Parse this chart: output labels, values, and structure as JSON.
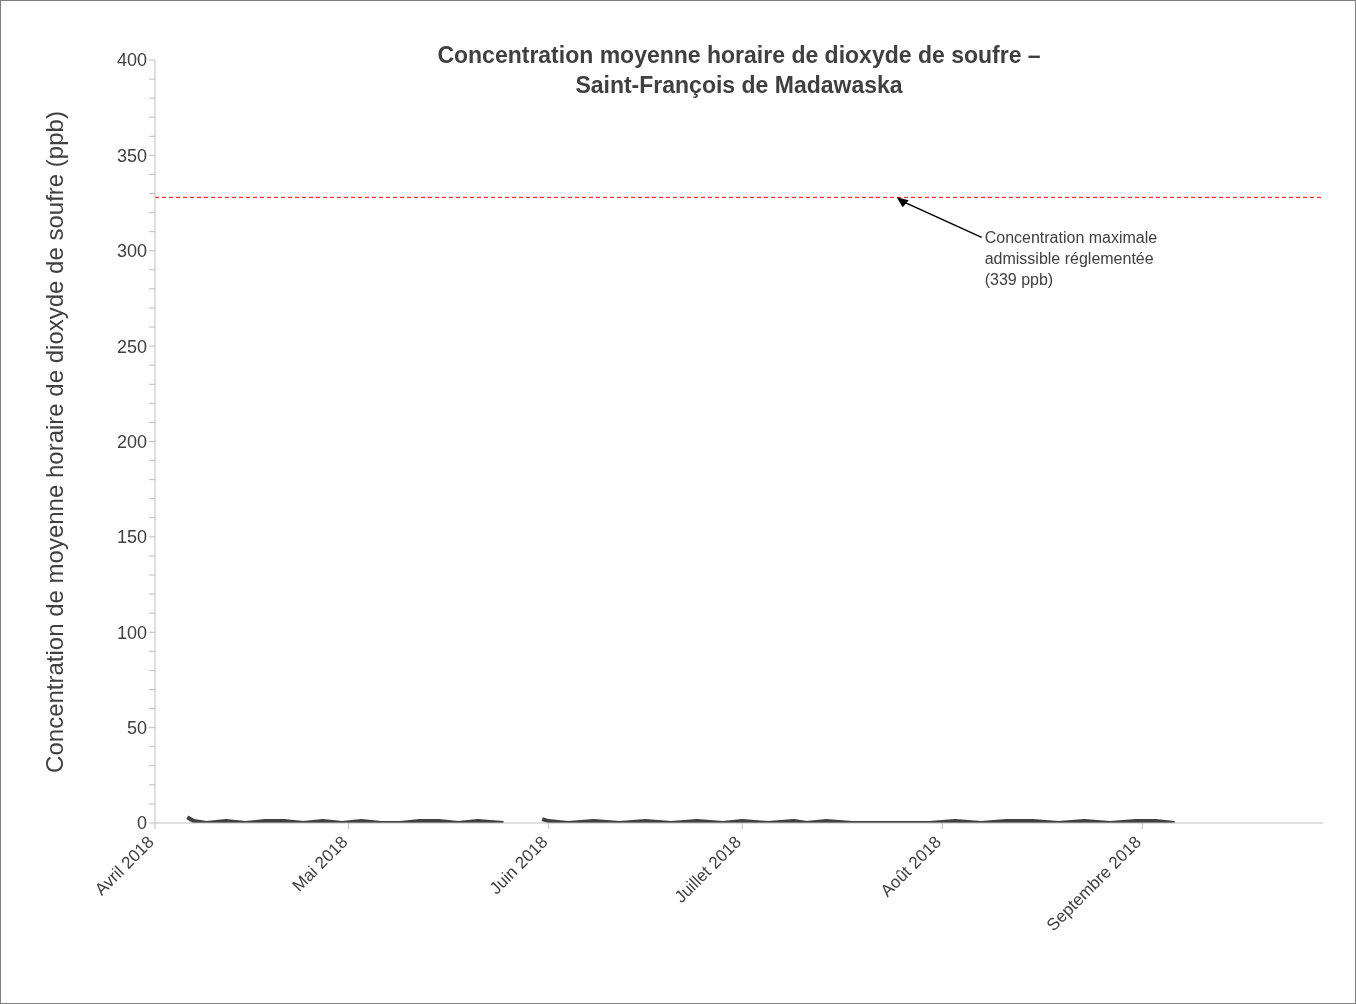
{
  "chart_data": {
    "type": "line",
    "title": "Concentration moyenne horaire de dioxyde de soufre –\nSaint-François de Madawaska",
    "ylabel": "Concentration de moyenne horaire de dioxyde de soufre (ppb)",
    "x": [
      "2018-04-06",
      "2018-04-07",
      "2018-04-09",
      "2018-04-12",
      "2018-04-15",
      "2018-04-18",
      "2018-04-21",
      "2018-04-24",
      "2018-04-27",
      "2018-04-30",
      "2018-05-03",
      "2018-05-06",
      "2018-05-09",
      "2018-05-12",
      "2018-05-15",
      "2018-05-18",
      "2018-05-21",
      "2018-05-25",
      "2018-05-28",
      "2018-05-31",
      "2018-06-01",
      "2018-06-04",
      "2018-06-08",
      "2018-06-12",
      "2018-06-16",
      "2018-06-20",
      "2018-06-24",
      "2018-06-28",
      "2018-07-01",
      "2018-07-05",
      "2018-07-09",
      "2018-07-11",
      "2018-07-14",
      "2018-07-18",
      "2018-07-22",
      "2018-07-26",
      "2018-07-30",
      "2018-08-03",
      "2018-08-07",
      "2018-08-11",
      "2018-08-15",
      "2018-08-19",
      "2018-08-23",
      "2018-08-27",
      "2018-08-31",
      "2018-09-03",
      "2018-09-06"
    ],
    "values": [
      3,
      1,
      0,
      1,
      0,
      1,
      1,
      0,
      1,
      0,
      1,
      0,
      0,
      1,
      1,
      0,
      1,
      0,
      null,
      2,
      1,
      0,
      1,
      0,
      1,
      0,
      1,
      0,
      1,
      0,
      1,
      0,
      1,
      0,
      0,
      0,
      0,
      1,
      0,
      1,
      1,
      0,
      1,
      0,
      1,
      1,
      0
    ],
    "color": "#404040",
    "line_style": "solid",
    "marker": "none",
    "xlim": [
      "2018-04-01",
      "2018-09-29"
    ],
    "xticks": [
      {
        "value": "2018-04-01",
        "label": "Avril 2018"
      },
      {
        "value": "2018-05-01",
        "label": "Mai 2018"
      },
      {
        "value": "2018-06-01",
        "label": "Juin 2018"
      },
      {
        "value": "2018-07-01",
        "label": "Juillet 2018"
      },
      {
        "value": "2018-08-01",
        "label": "Août 2018"
      },
      {
        "value": "2018-09-01",
        "label": "Septembre 2018"
      }
    ],
    "ylim": [
      0,
      400
    ],
    "yticks": [
      0,
      {
        "value": 10,
        "label": null
      },
      {
        "value": 20,
        "label": null
      },
      {
        "value": 30,
        "label": null
      },
      {
        "value": 40,
        "label": null
      },
      50,
      {
        "value": 60,
        "label": null
      },
      {
        "value": 70,
        "label": null
      },
      {
        "value": 80,
        "label": null
      },
      {
        "value": 90,
        "label": null
      },
      100,
      {
        "value": 110,
        "label": null
      },
      {
        "value": 120,
        "label": null
      },
      {
        "value": 130,
        "label": null
      },
      {
        "value": 140,
        "label": null
      },
      150,
      {
        "value": 160,
        "label": null
      },
      {
        "value": 170,
        "label": null
      },
      {
        "value": 180,
        "label": null
      },
      {
        "value": 190,
        "label": null
      },
      200,
      {
        "value": 210,
        "label": null
      },
      {
        "value": 220,
        "label": null
      },
      {
        "value": 230,
        "label": null
      },
      {
        "value": 240,
        "label": null
      },
      250,
      {
        "value": 260,
        "label": null
      },
      {
        "value": 270,
        "label": null
      },
      {
        "value": 280,
        "label": null
      },
      {
        "value": 290,
        "label": null
      },
      300,
      {
        "value": 310,
        "label": null
      },
      {
        "value": 320,
        "label": null
      },
      {
        "value": 330,
        "label": null
      },
      {
        "value": 340,
        "label": null
      },
      350,
      {
        "value": 360,
        "label": null
      },
      {
        "value": 370,
        "label": null
      },
      {
        "value": 380,
        "label": null
      },
      {
        "value": 390,
        "label": null
      },
      400
    ],
    "ref_lines": [
      {
        "axis": "y",
        "value": 328,
        "color": "#ff0000",
        "line_style": "dashed"
      }
    ],
    "annotations": [
      {
        "text": "Concentration maximale\nadmissible réglementée\n(339 ppb)",
        "y": 328
      }
    ],
    "grid": false
  }
}
